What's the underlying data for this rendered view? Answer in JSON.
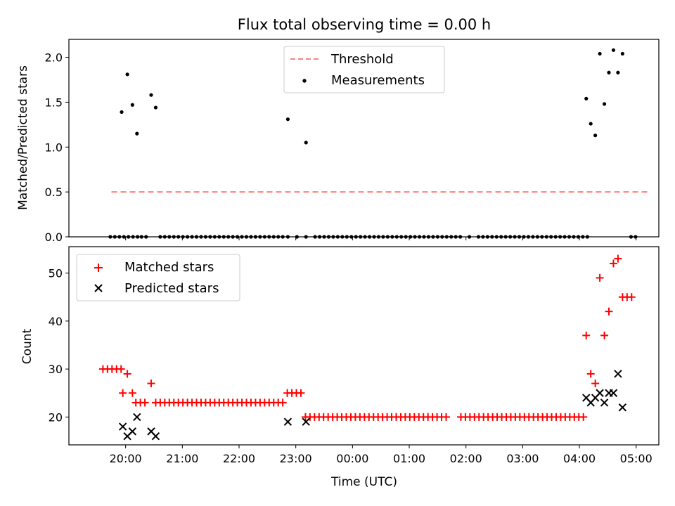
{
  "chart_data": [
    {
      "type": "scatter",
      "title": "Flux total observing time = 0.00 h",
      "xlabel": "",
      "ylabel": "Matched/Predicted stars",
      "ylim": [
        0,
        2.2
      ],
      "yticks": [
        "0.0",
        "0.5",
        "1.0",
        "1.5",
        "2.0"
      ],
      "xlim_hours": [
        19.0,
        29.4
      ],
      "legend": {
        "placement": "top-center"
      },
      "threshold": {
        "name": "Threshold",
        "value": 0.5,
        "x_start": 19.75,
        "x_end": 29.25,
        "color": "#ff7f7f"
      },
      "series": [
        {
          "name": "Measurements",
          "color": "#000000",
          "x": [
            19.73,
            19.81,
            19.89,
            19.97,
            20.05,
            20.13,
            20.21,
            19.93,
            20.03,
            20.12,
            20.2,
            20.28,
            20.36,
            20.45,
            20.53,
            20.61,
            20.69,
            20.77,
            20.85,
            20.93,
            21.01,
            21.09,
            21.17,
            21.25,
            21.33,
            21.41,
            21.49,
            21.57,
            21.65,
            21.73,
            21.81,
            21.89,
            21.97,
            22.05,
            22.13,
            22.21,
            22.29,
            22.37,
            22.45,
            22.53,
            22.61,
            22.69,
            22.77,
            22.86,
            22.86,
            23.02,
            23.18,
            23.18,
            23.34,
            23.42,
            23.5,
            23.58,
            23.66,
            23.74,
            23.82,
            23.9,
            23.98,
            24.06,
            24.14,
            24.22,
            24.3,
            24.38,
            24.46,
            24.54,
            24.62,
            24.7,
            24.78,
            24.86,
            24.94,
            25.02,
            25.1,
            25.18,
            25.26,
            25.34,
            25.42,
            25.5,
            25.58,
            25.66,
            25.74,
            25.82,
            25.9,
            26.06,
            26.22,
            26.3,
            26.38,
            26.46,
            26.54,
            26.62,
            26.7,
            26.78,
            26.86,
            26.94,
            27.02,
            27.1,
            27.18,
            27.26,
            27.34,
            27.42,
            27.5,
            27.58,
            27.66,
            27.74,
            27.82,
            27.9,
            27.98,
            28.06,
            28.14,
            28.12,
            28.2,
            28.28,
            28.36,
            28.44,
            28.52,
            28.6,
            28.68,
            28.76,
            28.91,
            28.99
          ],
          "y": [
            0,
            0,
            0,
            0,
            0,
            0,
            0,
            1.39,
            1.81,
            1.47,
            1.15,
            0,
            0,
            1.58,
            1.44,
            0,
            0,
            0,
            0,
            0,
            0,
            0,
            0,
            0,
            0,
            0,
            0,
            0,
            0,
            0,
            0,
            0,
            0,
            0,
            0,
            0,
            0,
            0,
            0,
            0,
            0,
            0,
            0,
            0,
            1.31,
            0,
            0,
            1.05,
            0,
            0,
            0,
            0,
            0,
            0,
            0,
            0,
            0,
            0,
            0,
            0,
            0,
            0,
            0,
            0,
            0,
            0,
            0,
            0,
            0,
            0,
            0,
            0,
            0,
            0,
            0,
            0,
            0,
            0,
            0,
            0,
            0,
            0,
            0,
            0,
            0,
            0,
            0,
            0,
            0,
            0,
            0,
            0,
            0,
            0,
            0,
            0,
            0,
            0,
            0,
            0,
            0,
            0,
            0,
            0,
            0,
            0,
            0,
            1.54,
            1.26,
            1.13,
            2.04,
            1.48,
            1.83,
            2.08,
            1.83,
            2.04,
            0,
            0
          ]
        }
      ]
    },
    {
      "type": "scatter",
      "title": "",
      "xlabel": "Time (UTC)",
      "ylabel": "Count",
      "ylim": [
        14.2,
        55.5
      ],
      "yticks": [
        "20",
        "30",
        "40",
        "50"
      ],
      "xticks": [
        "20:00",
        "21:00",
        "22:00",
        "23:00",
        "00:00",
        "01:00",
        "02:00",
        "03:00",
        "04:00",
        "05:00"
      ],
      "xlim_hours": [
        19.0,
        29.4
      ],
      "legend": {
        "placement": "top-left"
      },
      "series": [
        {
          "name": "Matched stars",
          "marker": "plus",
          "color": "#ff0000",
          "x": [
            19.6,
            19.68,
            19.76,
            19.84,
            19.92,
            19.95,
            20.03,
            20.12,
            20.18,
            20.26,
            20.34,
            20.45,
            20.53,
            20.61,
            20.69,
            20.77,
            20.85,
            20.93,
            21.01,
            21.09,
            21.17,
            21.25,
            21.33,
            21.41,
            21.49,
            21.57,
            21.65,
            21.73,
            21.81,
            21.89,
            21.97,
            22.05,
            22.13,
            22.21,
            22.29,
            22.37,
            22.45,
            22.53,
            22.61,
            22.69,
            22.77,
            22.85,
            22.93,
            23.01,
            23.09,
            23.17,
            23.25,
            23.33,
            23.41,
            23.49,
            23.57,
            23.65,
            23.73,
            23.81,
            23.89,
            23.97,
            24.05,
            24.13,
            24.21,
            24.29,
            24.37,
            24.45,
            24.53,
            24.61,
            24.69,
            24.77,
            24.85,
            24.93,
            25.01,
            25.09,
            25.17,
            25.25,
            25.33,
            25.41,
            25.49,
            25.57,
            25.65,
            25.91,
            25.99,
            26.07,
            26.15,
            26.23,
            26.31,
            26.39,
            26.47,
            26.55,
            26.63,
            26.71,
            26.79,
            26.87,
            26.95,
            27.03,
            27.11,
            27.19,
            27.27,
            27.35,
            27.43,
            27.51,
            27.59,
            27.67,
            27.75,
            27.83,
            27.91,
            27.99,
            28.07,
            28.12,
            28.2,
            28.28,
            28.36,
            28.44,
            28.52,
            28.6,
            28.68,
            28.76,
            28.84,
            28.92
          ],
          "y": [
            30,
            30,
            30,
            30,
            30,
            25,
            29,
            25,
            23,
            23,
            23,
            27,
            23,
            23,
            23,
            23,
            23,
            23,
            23,
            23,
            23,
            23,
            23,
            23,
            23,
            23,
            23,
            23,
            23,
            23,
            23,
            23,
            23,
            23,
            23,
            23,
            23,
            23,
            23,
            23,
            23,
            25,
            25,
            25,
            25,
            20,
            20,
            20,
            20,
            20,
            20,
            20,
            20,
            20,
            20,
            20,
            20,
            20,
            20,
            20,
            20,
            20,
            20,
            20,
            20,
            20,
            20,
            20,
            20,
            20,
            20,
            20,
            20,
            20,
            20,
            20,
            20,
            20,
            20,
            20,
            20,
            20,
            20,
            20,
            20,
            20,
            20,
            20,
            20,
            20,
            20,
            20,
            20,
            20,
            20,
            20,
            20,
            20,
            20,
            20,
            20,
            20,
            20,
            20,
            20,
            37,
            29,
            27,
            49,
            37,
            42,
            52,
            53,
            45,
            45,
            45
          ]
        },
        {
          "name": "Predicted stars",
          "marker": "x",
          "color": "#000000",
          "x": [
            19.95,
            20.03,
            20.12,
            20.2,
            20.45,
            20.53,
            22.86,
            23.18,
            28.12,
            28.2,
            28.28,
            28.36,
            28.44,
            28.52,
            28.6,
            28.68,
            28.76
          ],
          "y": [
            18,
            16,
            17,
            20,
            17,
            16,
            19,
            19,
            24,
            23,
            24,
            25,
            23,
            25,
            25,
            29,
            22
          ]
        }
      ]
    }
  ]
}
